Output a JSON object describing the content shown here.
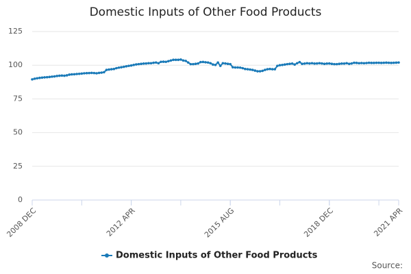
{
  "chart_data": {
    "type": "line",
    "title": "Domestic Inputs of Other Food Products",
    "categories": [
      "2008 DEC",
      null,
      null,
      null,
      null,
      null,
      null,
      null,
      null,
      null,
      null,
      null,
      null,
      null,
      null,
      null,
      null,
      null,
      null,
      null,
      null,
      null,
      null,
      null,
      null,
      null,
      null,
      null,
      null,
      null,
      null,
      null,
      null,
      null,
      null,
      null,
      null,
      null,
      null,
      null,
      "2012 APR",
      null,
      null,
      null,
      null,
      null,
      null,
      null,
      null,
      null,
      null,
      null,
      null,
      null,
      null,
      null,
      null,
      null,
      null,
      null,
      null,
      null,
      null,
      null,
      null,
      null,
      null,
      null,
      null,
      null,
      null,
      null,
      null,
      null,
      null,
      null,
      null,
      null,
      null,
      null,
      "2015 AUG",
      null,
      null,
      null,
      null,
      null,
      null,
      null,
      null,
      null,
      null,
      null,
      null,
      null,
      null,
      null,
      null,
      null,
      null,
      null,
      null,
      null,
      null,
      null,
      null,
      null,
      null,
      null,
      null,
      null,
      null,
      null,
      null,
      null,
      null,
      null,
      null,
      null,
      null,
      null,
      "2018 DEC",
      null,
      null,
      null,
      null,
      null,
      null,
      null,
      null,
      null,
      null,
      null,
      null,
      null,
      null,
      null,
      null,
      null,
      null,
      null,
      null,
      null,
      null,
      null,
      null,
      null,
      null,
      null,
      "2021 APR"
    ],
    "series": [
      {
        "name": "Domestic Inputs of Other Food Products",
        "color": "#1a7ab8",
        "values": [
          89.5,
          90,
          90.3,
          90.6,
          90.8,
          91,
          91.1,
          91.3,
          91.5,
          91.7,
          92,
          92.2,
          92.3,
          92.2,
          92.5,
          93,
          93.2,
          93.3,
          93.5,
          93.6,
          93.8,
          94,
          94.1,
          94.2,
          94.3,
          94.2,
          94,
          94.3,
          94.5,
          94.8,
          96.5,
          96.8,
          97,
          97.2,
          97.8,
          98.2,
          98.5,
          98.8,
          99.2,
          99.5,
          99.8,
          100.2,
          100.6,
          100.8,
          101,
          101.2,
          101.3,
          101.5,
          101.5,
          101.8,
          102,
          101.5,
          102.5,
          102.6,
          102.5,
          103,
          103.5,
          104,
          104,
          104,
          104.2,
          103.5,
          103.2,
          102,
          100.8,
          100.8,
          101,
          101.3,
          102.3,
          102.4,
          102.2,
          102,
          101.5,
          100.5,
          100.2,
          102,
          99.5,
          101.5,
          101.3,
          101,
          100.8,
          98.5,
          98.3,
          98.3,
          98.2,
          97.8,
          97.2,
          97,
          96.8,
          96.5,
          96,
          95.5,
          95.5,
          95.8,
          96.5,
          97,
          97.2,
          97,
          97,
          99.5,
          100,
          100.2,
          100.5,
          100.8,
          101,
          101.2,
          100.5,
          101.5,
          102.3,
          101,
          101.2,
          101.5,
          101.3,
          101.5,
          101.2,
          101.3,
          101.5,
          101.3,
          101,
          101.2,
          101.3,
          101,
          100.8,
          100.8,
          101,
          101.2,
          101.2,
          101.5,
          101,
          101.3,
          101.8,
          101.7,
          101.5,
          101.6,
          101.5,
          101.6,
          101.8,
          101.7,
          101.7,
          101.8,
          101.8,
          101.7,
          101.8,
          101.9,
          101.8,
          101.7,
          101.8,
          101.9,
          102
        ]
      }
    ],
    "ylim": [
      0,
      125
    ],
    "yticks": [
      0,
      25,
      50,
      75,
      100,
      125
    ],
    "grid": true,
    "source": "Source:"
  }
}
